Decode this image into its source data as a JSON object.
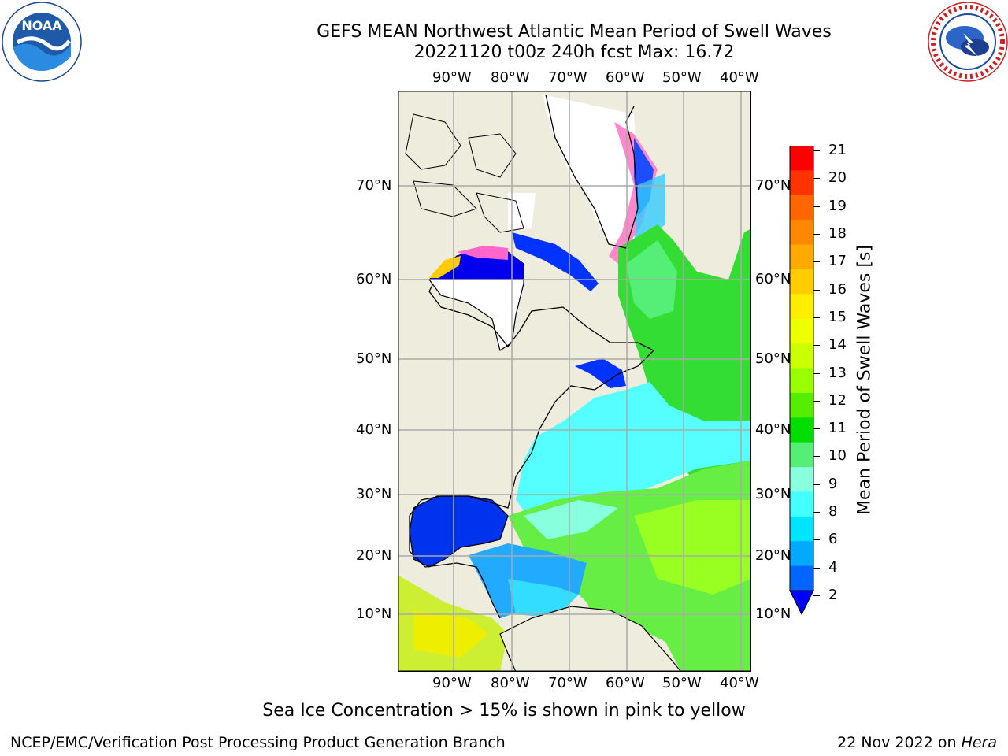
{
  "header": {
    "title_line1": "GEFS MEAN Northwest Atlantic Mean Period of Swell Waves",
    "title_line2": "20221120 t00z 240h fcst   Max: 16.72"
  },
  "logos": {
    "left": {
      "name": "NOAA",
      "ring_text": "NATIONAL OCEANIC AND ATMOSPHERIC ADMINISTRATION · U.S. DEPARTMENT OF COMMERCE"
    },
    "right": {
      "ring_text": "NATIONAL WEATHER SERVICE"
    }
  },
  "map": {
    "lon_labels": [
      "90°W",
      "80°W",
      "70°W",
      "60°W",
      "50°W",
      "40°W"
    ],
    "lat_labels": [
      "70°N",
      "60°N",
      "50°N",
      "40°N",
      "30°N",
      "20°N",
      "10°N"
    ]
  },
  "colorbar": {
    "label": "Mean Period of Swell Waves [s]",
    "ticks": [
      "21",
      "20",
      "19",
      "18",
      "17",
      "16",
      "15",
      "14",
      "13",
      "12",
      "11",
      "10",
      "9",
      "8",
      "6",
      "4",
      "2"
    ],
    "colors": [
      "#ff0000",
      "#ff3300",
      "#ff6600",
      "#ff8800",
      "#ffaa00",
      "#ffcc00",
      "#ffee00",
      "#eeff00",
      "#ccff00",
      "#99ff00",
      "#55ee00",
      "#00dd00",
      "#55ee77",
      "#88ffdd",
      "#44ffff",
      "#00e5ff",
      "#00aaff",
      "#0066ff"
    ],
    "under_color": "#0000ff"
  },
  "caption": "Sea Ice Concentration > 15% is shown in pink to yellow",
  "footer": {
    "left": "NCEP/EMC/Verification Post Processing Product Generation Branch",
    "date": "22 Nov 2022 on ",
    "host": "Hera"
  }
}
